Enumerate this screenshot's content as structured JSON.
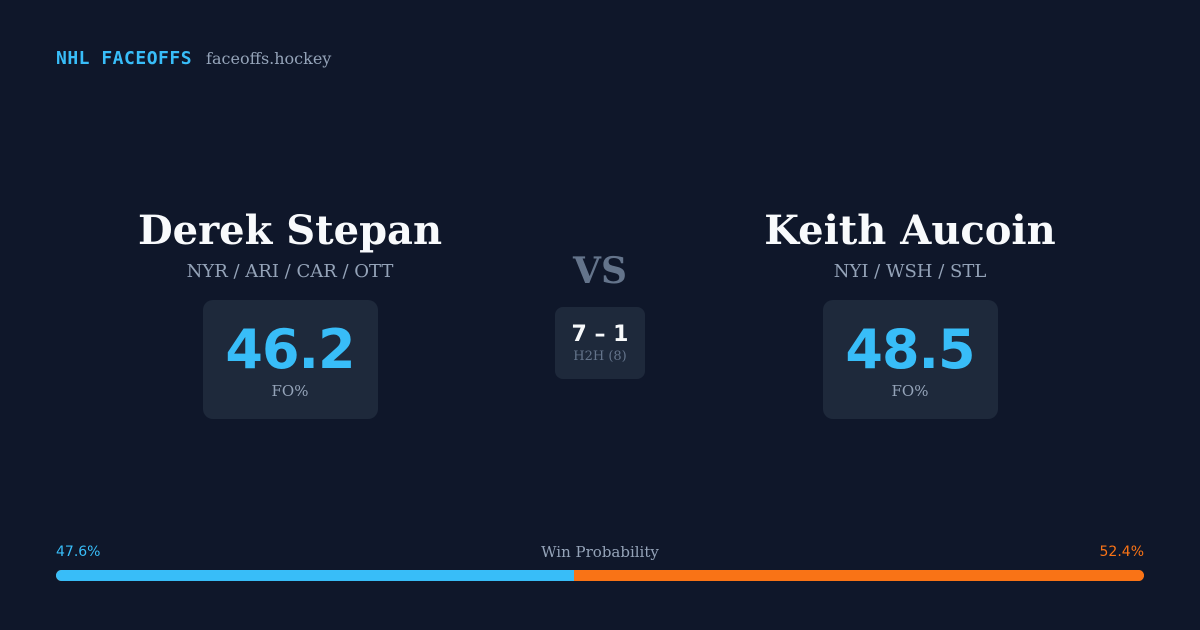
{
  "brand": {
    "title": "NHL FACEOFFS",
    "domain": "faceoffs.hockey"
  },
  "player_left": {
    "name": "Derek Stepan",
    "teams": "NYR / ARI / CAR / OTT",
    "fo_pct": "46.2",
    "fo_label": "FO%"
  },
  "player_right": {
    "name": "Keith Aucoin",
    "teams": "NYI / WSH / STL",
    "fo_pct": "48.5",
    "fo_label": "FO%"
  },
  "vs_label": "VS",
  "h2h": {
    "score": "7 – 1",
    "label": "H2H (8)"
  },
  "win_probability": {
    "title": "Win Probability",
    "left_label": "47.6%",
    "right_label": "52.4%",
    "left_fraction": 0.476,
    "left_color": "#38bdf8",
    "right_color": "#f97316"
  }
}
